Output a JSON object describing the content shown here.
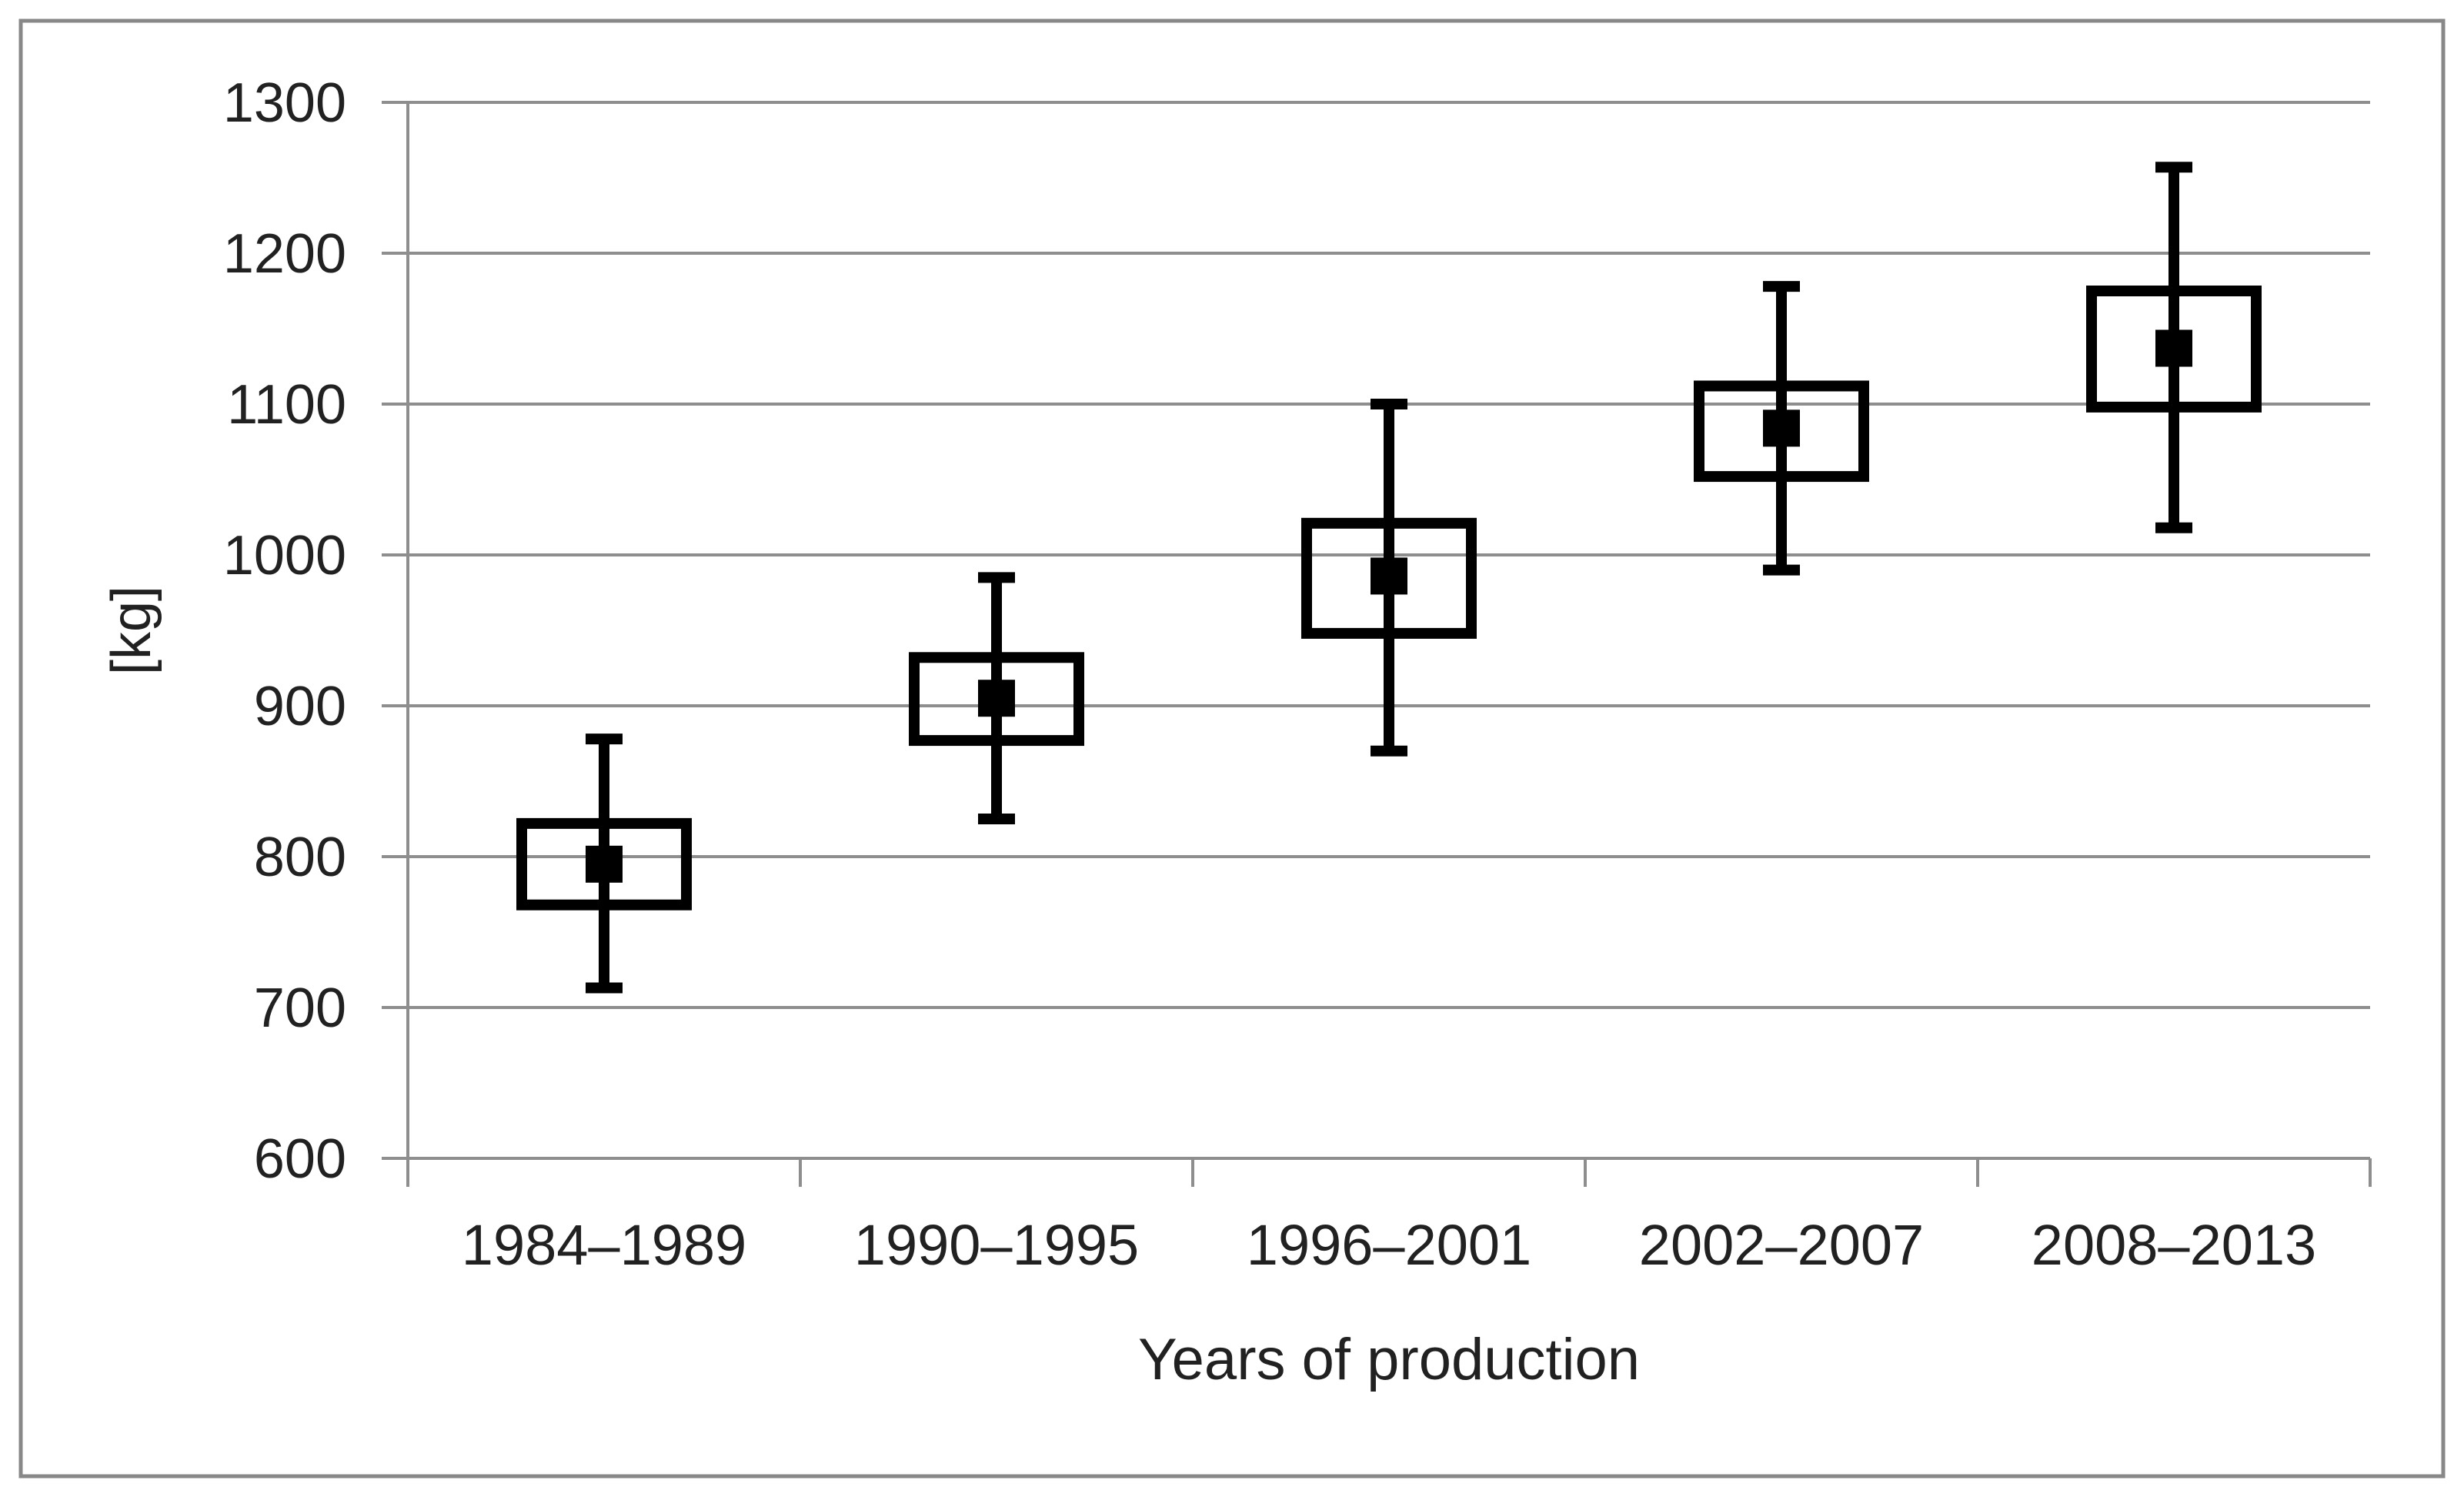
{
  "figure": {
    "background": "#ffffff"
  },
  "chart_data": {
    "type": "box",
    "title": "",
    "xlabel": "Years of production",
    "ylabel": "[kg]",
    "categories": [
      "1984–1989",
      "1990–1995",
      "1996–2001",
      "2002–2007",
      "2008–2013"
    ],
    "series": [
      {
        "category": "1984–1989",
        "whisker_low": 713,
        "q1": 768,
        "median": 795,
        "q3": 822,
        "whisker_high": 878
      },
      {
        "category": "1990–1995",
        "whisker_low": 825,
        "q1": 877,
        "median": 905,
        "q3": 932,
        "whisker_high": 985
      },
      {
        "category": "1996–2001",
        "whisker_low": 870,
        "q1": 948,
        "median": 986,
        "q3": 1021,
        "whisker_high": 1100
      },
      {
        "category": "2002–2007",
        "whisker_low": 990,
        "q1": 1052,
        "median": 1084,
        "q3": 1112,
        "whisker_high": 1178
      },
      {
        "category": "2008–2013",
        "whisker_low": 1018,
        "q1": 1098,
        "median": 1137,
        "q3": 1175,
        "whisker_high": 1257
      }
    ],
    "ylim": [
      600,
      1300
    ],
    "ytick_step": 100,
    "ytick_labels": [
      "600",
      "700",
      "800",
      "900",
      "1000",
      "1100",
      "1200",
      "1300"
    ],
    "grid": true,
    "legend": false
  },
  "style": {
    "box_color": "#000000",
    "median_color": "#000000",
    "whisker_color": "#000000",
    "gridline_color": "#8e8e8e",
    "axis_color": "#8e8e8e",
    "border_color": "#888888",
    "text_color": "#212121",
    "background_color": "#ffffff"
  }
}
